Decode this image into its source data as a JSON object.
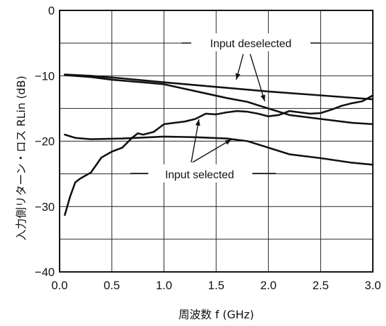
{
  "chart_data": {
    "type": "line",
    "xlabel": "周波数 f (GHz)",
    "ylabel": "入力側リターン・ロス RLin (dB)",
    "xlim": [
      0,
      3.0
    ],
    "ylim": [
      -40,
      0
    ],
    "grid": true,
    "x_ticks": [
      0,
      0.5,
      1.0,
      1.5,
      2.0,
      2.5,
      3.0
    ],
    "x_tick_labels": [
      "0.0",
      "0.5",
      "1.0",
      "1.5",
      "2.0",
      "2.5",
      "3.0"
    ],
    "y_ticks": [
      0,
      -10,
      -20,
      -30,
      -40
    ],
    "y_tick_labels": [
      "0",
      "−10",
      "−20",
      "−30",
      "−40"
    ],
    "annotations": {
      "deselected": "Input deselected",
      "selected": "Input selected"
    },
    "series": [
      {
        "group": "deselected",
        "x": [
          0.05,
          0.3,
          0.6,
          1.0,
          1.5,
          2.0,
          2.5,
          3.0
        ],
        "y": [
          -9.8,
          -10.0,
          -10.4,
          -11.0,
          -11.7,
          -12.4,
          -13.0,
          -13.6
        ]
      },
      {
        "group": "deselected",
        "x": [
          0.05,
          0.3,
          0.5,
          0.8,
          1.0,
          1.2,
          1.4,
          1.6,
          1.8,
          1.9,
          2.0,
          2.2,
          2.5,
          2.8,
          3.0
        ],
        "y": [
          -9.9,
          -10.2,
          -10.6,
          -11.0,
          -11.3,
          -12.0,
          -12.7,
          -13.4,
          -14.0,
          -14.5,
          -15.0,
          -16.0,
          -16.6,
          -17.2,
          -17.4
        ]
      },
      {
        "group": "selected",
        "x": [
          0.05,
          0.1,
          0.15,
          0.2,
          0.3,
          0.4,
          0.5,
          0.6,
          0.7,
          0.75,
          0.8,
          0.9,
          1.0,
          1.1,
          1.2,
          1.3,
          1.4,
          1.5,
          1.6,
          1.7,
          1.8,
          1.9,
          2.0,
          2.1,
          2.2,
          2.3,
          2.4,
          2.5,
          2.6,
          2.7,
          2.8,
          2.9,
          3.0
        ],
        "y": [
          -31.3,
          -28.5,
          -26.3,
          -25.7,
          -24.8,
          -22.5,
          -21.6,
          -21.0,
          -19.4,
          -18.8,
          -19.0,
          -18.6,
          -17.4,
          -17.2,
          -17.0,
          -16.6,
          -15.8,
          -15.9,
          -15.6,
          -15.4,
          -15.5,
          -15.8,
          -16.2,
          -16.0,
          -15.4,
          -15.6,
          -15.8,
          -15.7,
          -15.2,
          -14.6,
          -14.2,
          -13.9,
          -13.0
        ]
      },
      {
        "group": "selected",
        "x": [
          0.05,
          0.15,
          0.3,
          0.6,
          1.0,
          1.3,
          1.6,
          1.8,
          2.0,
          2.2,
          2.5,
          2.8,
          3.0
        ],
        "y": [
          -19.0,
          -19.5,
          -19.7,
          -19.6,
          -19.3,
          -19.4,
          -19.6,
          -20.0,
          -21.0,
          -22.0,
          -22.6,
          -23.3,
          -23.6
        ]
      }
    ]
  }
}
